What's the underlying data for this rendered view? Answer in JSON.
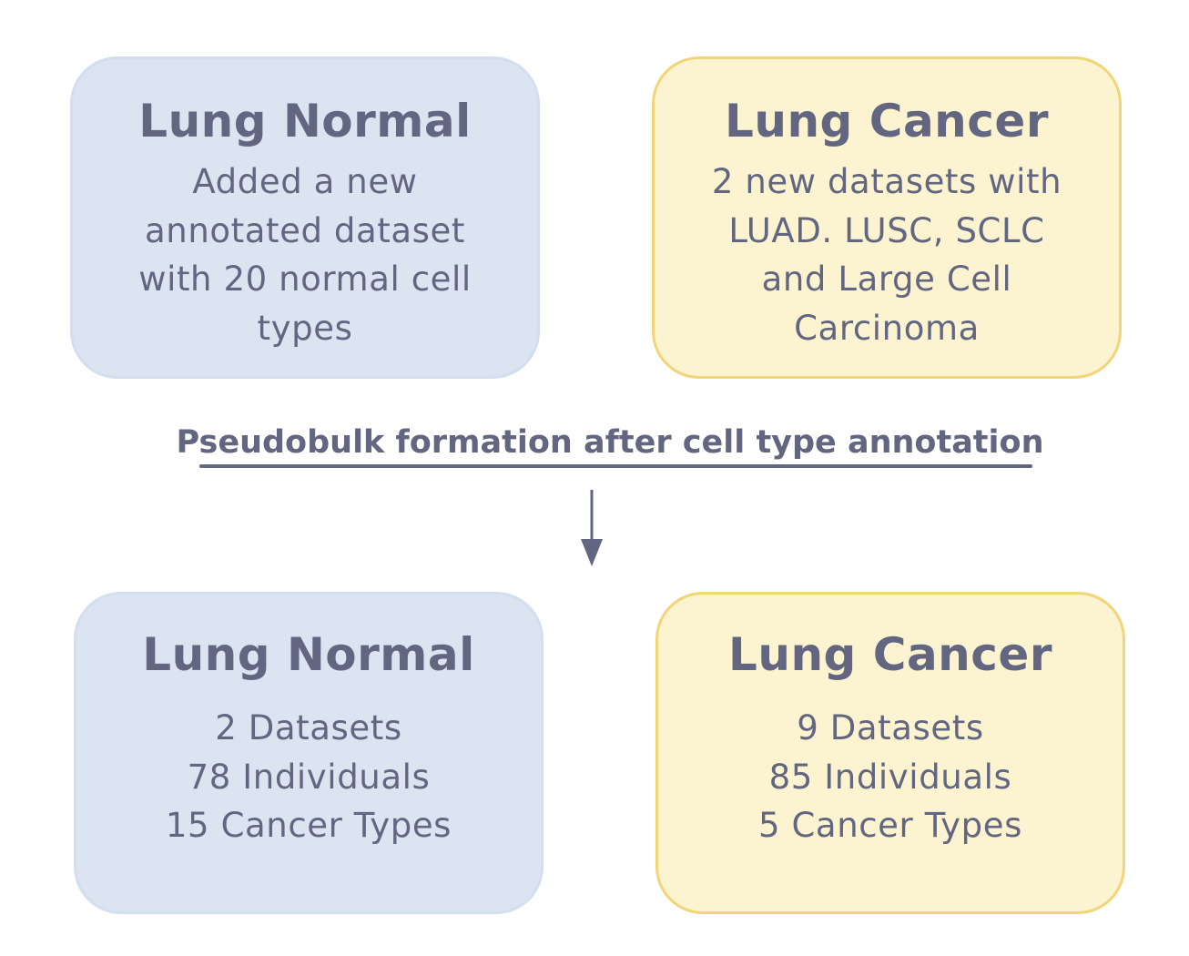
{
  "colors": {
    "text": "#626680",
    "normal_fill": "#dce3f1",
    "normal_border": "#d3deee",
    "cancer_fill": "#fcf3d0",
    "cancer_border": "#f2d578"
  },
  "top": {
    "normal": {
      "title": "Lung Normal",
      "lines": [
        "Added a new",
        "annotated dataset",
        "with 20 normal cell",
        "types"
      ]
    },
    "cancer": {
      "title": "Lung Cancer",
      "lines": [
        "2 new datasets with",
        "LUAD. LUSC, SCLC",
        "and Large Cell",
        "Carcinoma"
      ]
    }
  },
  "process": {
    "label": "Pseudobulk formation after cell type annotation",
    "arrow_icon": "down-arrow-icon"
  },
  "bottom": {
    "normal": {
      "title": "Lung Normal",
      "lines": [
        "2 Datasets",
        "78 Individuals",
        "15 Cancer Types"
      ]
    },
    "cancer": {
      "title": "Lung Cancer",
      "lines": [
        "9 Datasets",
        "85 Individuals",
        "5 Cancer Types"
      ]
    }
  }
}
